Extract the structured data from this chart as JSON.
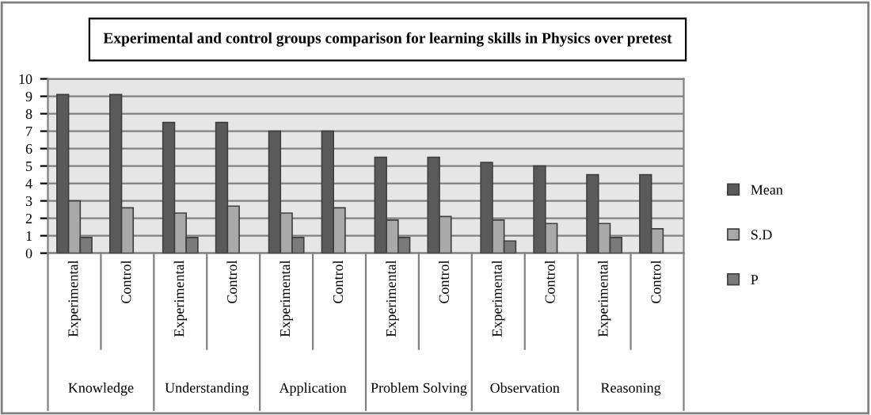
{
  "chart_data": {
    "type": "bar",
    "title": "Experimental and control groups comparison for learning skills in Physics over pretest",
    "categories": [
      "Experimental",
      "Control",
      "Experimental",
      "Control",
      "Experimental",
      "Control",
      "Experimental",
      "Control",
      "Experimental",
      "Control",
      "Experimental",
      "Control"
    ],
    "annotations": [
      "Knowledge",
      "Understanding",
      "Application",
      "Problem Solving",
      "Observation",
      "Reasoning"
    ],
    "series": [
      {
        "name": "Mean",
        "color": "#5a5a5a",
        "values": [
          9.1,
          9.1,
          7.5,
          7.5,
          7.0,
          7.0,
          5.5,
          5.5,
          5.2,
          5.0,
          4.5,
          4.5
        ]
      },
      {
        "name": "S.D",
        "color": "#a9a9a9",
        "values": [
          3.0,
          2.6,
          2.3,
          2.7,
          2.3,
          2.6,
          1.9,
          2.1,
          1.9,
          1.7,
          1.7,
          1.4
        ]
      },
      {
        "name": "P",
        "color": "#7a7a7a",
        "values": [
          0.9,
          null,
          0.9,
          null,
          0.9,
          null,
          0.9,
          null,
          0.7,
          null,
          0.9,
          null
        ]
      }
    ],
    "ylim": [
      0,
      10
    ],
    "yticks": [
      0,
      1,
      2,
      3,
      4,
      5,
      6,
      7,
      8,
      9,
      10
    ],
    "grid": "y",
    "legend": "right"
  }
}
